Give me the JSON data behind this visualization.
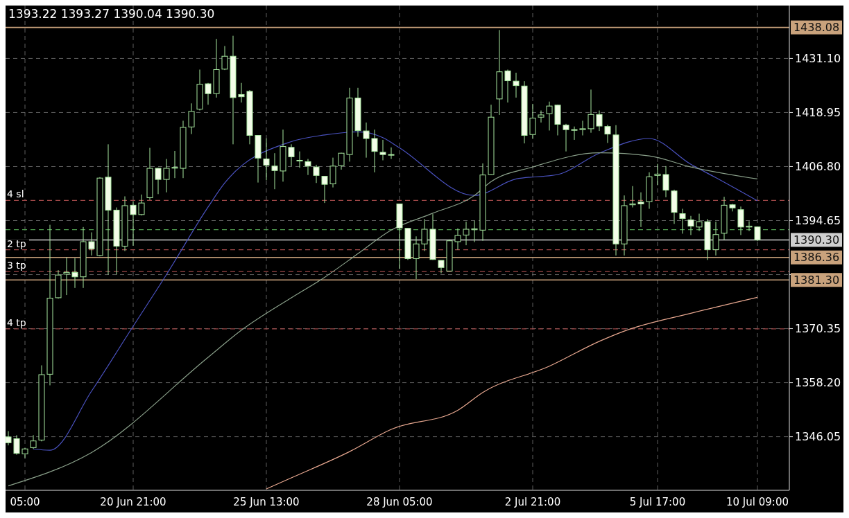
{
  "chart_data": {
    "type": "candlestick",
    "title": "1393.22 1393.27 1390.04 1390.30",
    "categories": [
      null,
      null,
      "05:00",
      null,
      null,
      null,
      null,
      null,
      null,
      null,
      null,
      null,
      null,
      null,
      null,
      "20 Jun 21:00",
      null,
      null,
      null,
      null,
      null,
      null,
      null,
      null,
      null,
      null,
      null,
      null,
      null,
      null,
      null,
      "25 Jun 13:00",
      null,
      null,
      null,
      null,
      null,
      null,
      null,
      null,
      null,
      null,
      null,
      null,
      null,
      null,
      null,
      "28 Jun 05:00",
      null,
      null,
      null,
      null,
      null,
      null,
      null,
      null,
      null,
      null,
      null,
      null,
      null,
      null,
      null,
      "2 Jul 21:00",
      null,
      null,
      null,
      null,
      null,
      null,
      null,
      null,
      null,
      null,
      null,
      null,
      null,
      null,
      "5 Jul 17:00",
      null,
      null,
      null,
      null,
      null,
      null,
      null,
      null,
      null,
      null,
      null,
      "10 Jul 09:00"
    ],
    "ohlc": [
      [
        1346.0,
        1347.3,
        1344.1,
        1344.7
      ],
      [
        1345.6,
        1346.4,
        1342.0,
        1342.3
      ],
      [
        1342.2,
        1343.5,
        1341.3,
        1343.3
      ],
      [
        1343.6,
        1346.4,
        1343.3,
        1345.1
      ],
      [
        1345.3,
        1362.1,
        1345.0,
        1360.0
      ],
      [
        1360.1,
        1393.7,
        1357.6,
        1377.2
      ],
      [
        1377.3,
        1383.5,
        1377.1,
        1382.4
      ],
      [
        1382.6,
        1386.4,
        1377.9,
        1383.0
      ],
      [
        1383.0,
        1386.2,
        1379.5,
        1382.0
      ],
      [
        1382.0,
        1393.2,
        1379.5,
        1389.9
      ],
      [
        1389.9,
        1392.0,
        1386.8,
        1388.3
      ],
      [
        1386.8,
        1404.4,
        1386.6,
        1404.2
      ],
      [
        1404.4,
        1411.8,
        1382.5,
        1397.0
      ],
      [
        1397.0,
        1397.6,
        1382.5,
        1388.9
      ],
      [
        1388.9,
        1400.1,
        1387.8,
        1398.0
      ],
      [
        1398.1,
        1399.0,
        1389.0,
        1396.0
      ],
      [
        1396.0,
        1400.5,
        1395.8,
        1398.6
      ],
      [
        1399.8,
        1411.0,
        1399.3,
        1406.4
      ],
      [
        1406.4,
        1406.5,
        1400.6,
        1403.9
      ],
      [
        1403.9,
        1408.5,
        1401.0,
        1406.4
      ],
      [
        1406.5,
        1410.3,
        1404.2,
        1406.6
      ],
      [
        1406.4,
        1417.1,
        1404.2,
        1415.6
      ],
      [
        1415.7,
        1421.0,
        1414.1,
        1419.2
      ],
      [
        1419.7,
        1428.6,
        1419.4,
        1425.3
      ],
      [
        1425.4,
        1425.6,
        1420.7,
        1423.2
      ],
      [
        1423.2,
        1435.5,
        1422.3,
        1428.6
      ],
      [
        1428.7,
        1433.9,
        1428.5,
        1431.6
      ],
      [
        1431.6,
        1436.2,
        1411.8,
        1422.3
      ],
      [
        1423.0,
        1425.6,
        1421.2,
        1422.5
      ],
      [
        1423.7,
        1424.0,
        1411.8,
        1413.8
      ],
      [
        1413.8,
        1413.8,
        1403.2,
        1408.7
      ],
      [
        1408.5,
        1413.1,
        1403.7,
        1407.1
      ],
      [
        1406.9,
        1409.8,
        1401.7,
        1405.9
      ],
      [
        1405.8,
        1415.1,
        1403.4,
        1411.3
      ],
      [
        1411.1,
        1411.8,
        1406.9,
        1409.0
      ],
      [
        1408.2,
        1410.2,
        1406.5,
        1408.1
      ],
      [
        1407.9,
        1408.5,
        1404.9,
        1406.9
      ],
      [
        1406.7,
        1407.2,
        1403.1,
        1404.8
      ],
      [
        1404.6,
        1404.6,
        1398.6,
        1402.8
      ],
      [
        1402.9,
        1408.8,
        1402.1,
        1406.9
      ],
      [
        1407.0,
        1409.9,
        1406.1,
        1409.8
      ],
      [
        1409.5,
        1424.5,
        1407.9,
        1422.2
      ],
      [
        1422.2,
        1424.5,
        1413.5,
        1414.9
      ],
      [
        1414.8,
        1416.7,
        1408.8,
        1413.1
      ],
      [
        1413.1,
        1415.1,
        1405.5,
        1410.2
      ],
      [
        1410.0,
        1412.8,
        1408.2,
        1409.5
      ],
      [
        1409.5,
        1411.1,
        1408.5,
        1409.4
      ],
      [
        1398.4,
        1398.4,
        1383.8,
        1393.0
      ],
      [
        1392.9,
        1392.9,
        1385.8,
        1386.1
      ],
      [
        1386.1,
        1391.1,
        1381.5,
        1389.4
      ],
      [
        1389.4,
        1395.0,
        1387.8,
        1392.7
      ],
      [
        1392.7,
        1396.1,
        1385.8,
        1385.9
      ],
      [
        1385.7,
        1385.7,
        1382.8,
        1384.1
      ],
      [
        1383.3,
        1390.4,
        1383.2,
        1390.1
      ],
      [
        1389.9,
        1392.9,
        1388.1,
        1391.3
      ],
      [
        1391.4,
        1394.4,
        1389.1,
        1392.7
      ],
      [
        1392.6,
        1394.6,
        1389.8,
        1392.8
      ],
      [
        1392.5,
        1407.5,
        1390.1,
        1404.9
      ],
      [
        1405.0,
        1420.7,
        1404.9,
        1417.9
      ],
      [
        1422.0,
        1437.5,
        1418.4,
        1428.1
      ],
      [
        1428.3,
        1428.6,
        1421.2,
        1426.1
      ],
      [
        1426.0,
        1427.9,
        1422.3,
        1425.0
      ],
      [
        1424.9,
        1426.0,
        1412.0,
        1413.8
      ],
      [
        1414.0,
        1420.9,
        1413.1,
        1417.7
      ],
      [
        1417.9,
        1419.4,
        1416.7,
        1418.4
      ],
      [
        1418.7,
        1421.4,
        1414.9,
        1420.4
      ],
      [
        1420.6,
        1420.7,
        1413.8,
        1416.3
      ],
      [
        1416.1,
        1416.4,
        1410.2,
        1415.1
      ],
      [
        1415.1,
        1415.8,
        1412.8,
        1415.0
      ],
      [
        1415.1,
        1417.1,
        1413.8,
        1415.3
      ],
      [
        1415.3,
        1424.1,
        1414.4,
        1418.5
      ],
      [
        1418.5,
        1419.4,
        1414.8,
        1415.9
      ],
      [
        1415.8,
        1416.2,
        1412.1,
        1414.1
      ],
      [
        1413.9,
        1416.1,
        1386.8,
        1389.4
      ],
      [
        1389.4,
        1400.3,
        1386.8,
        1398.0
      ],
      [
        1398.2,
        1402.4,
        1397.6,
        1398.4
      ],
      [
        1398.8,
        1401.0,
        1393.2,
        1398.4
      ],
      [
        1398.9,
        1405.5,
        1397.3,
        1404.5
      ],
      [
        1404.8,
        1407.4,
        1402.6,
        1405.1
      ],
      [
        1405.0,
        1406.9,
        1399.9,
        1401.5
      ],
      [
        1401.3,
        1401.6,
        1393.9,
        1396.5
      ],
      [
        1396.2,
        1397.3,
        1391.7,
        1395.1
      ],
      [
        1394.8,
        1395.7,
        1391.4,
        1393.4
      ],
      [
        1393.2,
        1396.2,
        1392.3,
        1394.4
      ],
      [
        1394.4,
        1395.0,
        1385.8,
        1388.1
      ],
      [
        1388.1,
        1394.4,
        1386.8,
        1391.5
      ],
      [
        1391.8,
        1400.0,
        1390.3,
        1398.1
      ],
      [
        1398.2,
        1398.4,
        1396.7,
        1397.5
      ],
      [
        1397.1,
        1397.8,
        1391.4,
        1393.2
      ],
      [
        1393.2,
        1394.5,
        1392.3,
        1393.4
      ],
      [
        1393.22,
        1393.27,
        1390.04,
        1390.3
      ]
    ],
    "series": [
      {
        "type": "line",
        "color": "#4a52c0",
        "values": [
          null,
          null,
          null,
          1343.3,
          null,
          1343.0,
          null,
          null,
          null,
          null,
          1356.3,
          null,
          null,
          null,
          null,
          1370.9,
          null,
          null,
          null,
          1382.5,
          null,
          null,
          null,
          null,
          1397.7,
          null,
          1403.1,
          null,
          null,
          null,
          null,
          null,
          null,
          null,
          1412.4,
          null,
          null,
          null,
          1413.9,
          null,
          null,
          null,
          1414.6,
          null,
          null,
          1413.3,
          null,
          1411.0,
          null,
          null,
          null,
          null,
          null,
          null,
          null,
          null,
          1400.3,
          null,
          null,
          null,
          null,
          1404.0,
          null,
          null,
          null,
          null,
          1405.0,
          null,
          null,
          null,
          null,
          1409.8,
          null,
          null,
          null,
          null,
          null,
          1413.1,
          null,
          null,
          null,
          null,
          1407.3,
          null,
          null,
          1404.3,
          null,
          null,
          null,
          null,
          1399.1
        ]
      },
      {
        "type": "line",
        "color": "#8aa08a",
        "values": [
          1335.0,
          null,
          null,
          null,
          null,
          null,
          null,
          null,
          null,
          null,
          1342.5,
          null,
          null,
          null,
          null,
          null,
          null,
          null,
          null,
          null,
          null,
          null,
          null,
          null,
          1363.9,
          null,
          null,
          null,
          1370.0,
          null,
          null,
          null,
          null,
          null,
          1377.3,
          null,
          null,
          null,
          1381.9,
          null,
          null,
          null,
          1387.2,
          null,
          null,
          null,
          1392.5,
          null,
          null,
          null,
          null,
          1396.3,
          null,
          null,
          null,
          null,
          1400.3,
          null,
          1403.4,
          null,
          null,
          null,
          null,
          1406.7,
          null,
          null,
          null,
          null,
          null,
          null,
          null,
          1409.9,
          null,
          null,
          null,
          null,
          null,
          1409.2,
          null,
          null,
          null,
          null,
          1406.7,
          null,
          null,
          null,
          null,
          null,
          null,
          null,
          1404.0
        ]
      },
      {
        "type": "line",
        "color": "#e8a890",
        "values": [
          null,
          null,
          null,
          null,
          null,
          null,
          null,
          null,
          null,
          null,
          null,
          null,
          null,
          null,
          null,
          null,
          null,
          null,
          null,
          null,
          null,
          null,
          null,
          null,
          null,
          null,
          null,
          null,
          null,
          null,
          null,
          1334.3,
          null,
          null,
          1336.8,
          null,
          null,
          null,
          null,
          null,
          null,
          1342.7,
          null,
          null,
          null,
          null,
          1347.7,
          null,
          null,
          null,
          null,
          null,
          null,
          null,
          1352.0,
          null,
          null,
          1356.0,
          null,
          null,
          null,
          null,
          null,
          null,
          null,
          1361.9,
          null,
          null,
          null,
          null,
          null,
          1367.5,
          null,
          null,
          1369.8,
          null,
          null,
          null,
          null,
          null,
          null,
          null,
          1373.8,
          null,
          null,
          null,
          null,
          null,
          null,
          null,
          1377.4
        ]
      }
    ],
    "ylim": [
      1334,
      1443
    ],
    "yticks": [
      {
        "value": 1346.05,
        "label": "1346.05"
      },
      {
        "value": 1358.2,
        "label": "1358.20"
      },
      {
        "value": 1370.35,
        "label": "1370.35"
      },
      {
        "value": 1382.5,
        "label": null
      },
      {
        "value": 1394.65,
        "label": "1394.65"
      },
      {
        "value": 1406.8,
        "label": "1406.80"
      },
      {
        "value": 1418.95,
        "label": "1418.95"
      },
      {
        "value": 1431.1,
        "label": "1431.10"
      }
    ],
    "grid": true,
    "ref_lines": [
      {
        "axis": "y",
        "value": 1438.08,
        "label": "1438.08",
        "color": "#c9a27c",
        "line_style": "solid"
      },
      {
        "axis": "y",
        "value": 1390.3,
        "label": "1390.30",
        "color": "#cfcfcf",
        "line_style": "solid"
      },
      {
        "axis": "y",
        "value": 1386.36,
        "label": "1386.36",
        "color": "#c9a27c",
        "line_style": "solid"
      },
      {
        "axis": "y",
        "value": 1381.3,
        "label": "1381.30",
        "color": "#c9a27c",
        "line_style": "solid"
      },
      {
        "axis": "y",
        "value": 1399.2,
        "label": "4 sl",
        "color": "#a04848",
        "line_style": "dashed"
      },
      {
        "axis": "y",
        "value": 1392.6,
        "label": null,
        "color": "#4e9a4e",
        "line_style": "dashed"
      },
      {
        "axis": "y",
        "value": 1388.1,
        "label": "2 tp",
        "color": "#a04848",
        "line_style": "dashed"
      },
      {
        "axis": "y",
        "value": 1383.2,
        "label": "3 tp",
        "color": "#a04848",
        "line_style": "dashed"
      },
      {
        "axis": "y",
        "value": 1370.3,
        "label": "4 tp",
        "color": "#a04848",
        "line_style": "dashed"
      }
    ]
  }
}
